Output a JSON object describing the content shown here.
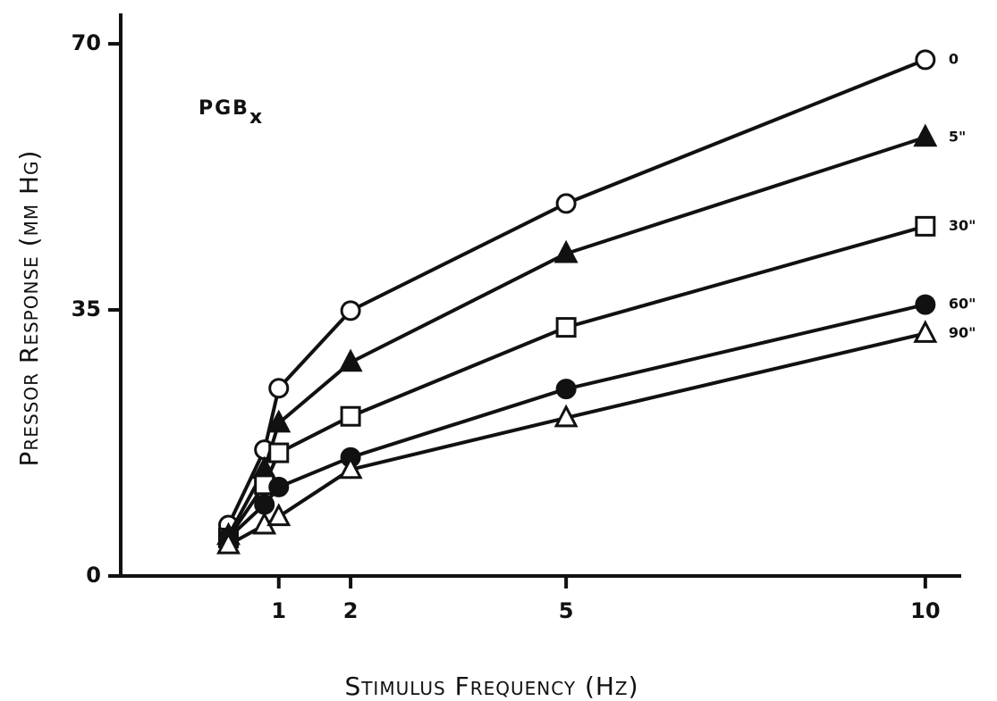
{
  "chart_data": {
    "type": "line",
    "xlabel": "Stimulus Frequency (Hz)",
    "ylabel": "Pressor Response (mm Hg)",
    "annotation": {
      "text": "PGB",
      "subscript": "x"
    },
    "x": [
      0.3,
      0.8,
      1,
      2,
      5,
      10
    ],
    "series": [
      {
        "name": "0",
        "color": "#111111",
        "marker": "circle-open",
        "values": [
          6.7,
          16.6,
          24.7,
          34.9,
          49,
          67.9
        ]
      },
      {
        "name": "5\"",
        "color": "#111111",
        "marker": "triangle-filled",
        "values": [
          5.3,
          14,
          20.1,
          28.1,
          42.4,
          57.7
        ]
      },
      {
        "name": "30\"",
        "color": "#111111",
        "marker": "square-open",
        "values": [
          5,
          12,
          16.2,
          21,
          32.7,
          46
        ]
      },
      {
        "name": "60\"",
        "color": "#111111",
        "marker": "circle-filled",
        "values": [
          5,
          9.4,
          11.7,
          15.6,
          24.6,
          35.7
        ]
      },
      {
        "name": "90\"",
        "color": "#111111",
        "marker": "triangle-open",
        "values": [
          4.1,
          6.7,
          7.8,
          14,
          20.8,
          31.9
        ]
      }
    ],
    "xlim": [
      -1.2,
      10.5
    ],
    "ylim": [
      0,
      74
    ],
    "xticks": [
      1,
      2,
      5,
      10
    ],
    "yticks": [
      0,
      35,
      70
    ],
    "grid": false
  }
}
